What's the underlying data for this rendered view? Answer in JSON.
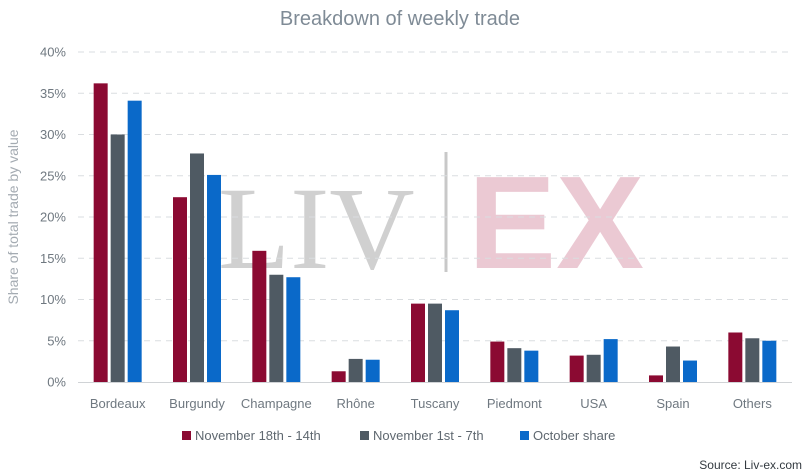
{
  "chart_data": {
    "type": "bar",
    "title": "Breakdown of weekly trade",
    "ylabel": "Share of total trade by value",
    "xlabel": "",
    "ylim": [
      0,
      40
    ],
    "yticks": [
      "0%",
      "5%",
      "10%",
      "15%",
      "20%",
      "25%",
      "30%",
      "35%",
      "40%"
    ],
    "grid": true,
    "legend_position": "bottom",
    "categories": [
      "Bordeaux",
      "Burgundy",
      "Champagne",
      "Rhône",
      "Tuscany",
      "Piedmont",
      "USA",
      "Spain",
      "Others"
    ],
    "series": [
      {
        "name": "November 18th - 14th",
        "color": "#8b0a32",
        "values": [
          36.2,
          22.4,
          15.9,
          1.3,
          9.5,
          4.9,
          3.2,
          0.8,
          6.0
        ]
      },
      {
        "name": "November 1st - 7th",
        "color": "#4f5a63",
        "values": [
          30.0,
          27.7,
          13.0,
          2.8,
          9.5,
          4.1,
          3.3,
          4.3,
          5.3
        ]
      },
      {
        "name": "October share",
        "color": "#0a69c9",
        "values": [
          34.1,
          25.1,
          12.7,
          2.7,
          8.7,
          3.8,
          5.2,
          2.6,
          5.0
        ]
      }
    ],
    "source": "Source: Liv-ex.com"
  },
  "watermark": {
    "left": "LIV",
    "right": "EX"
  }
}
